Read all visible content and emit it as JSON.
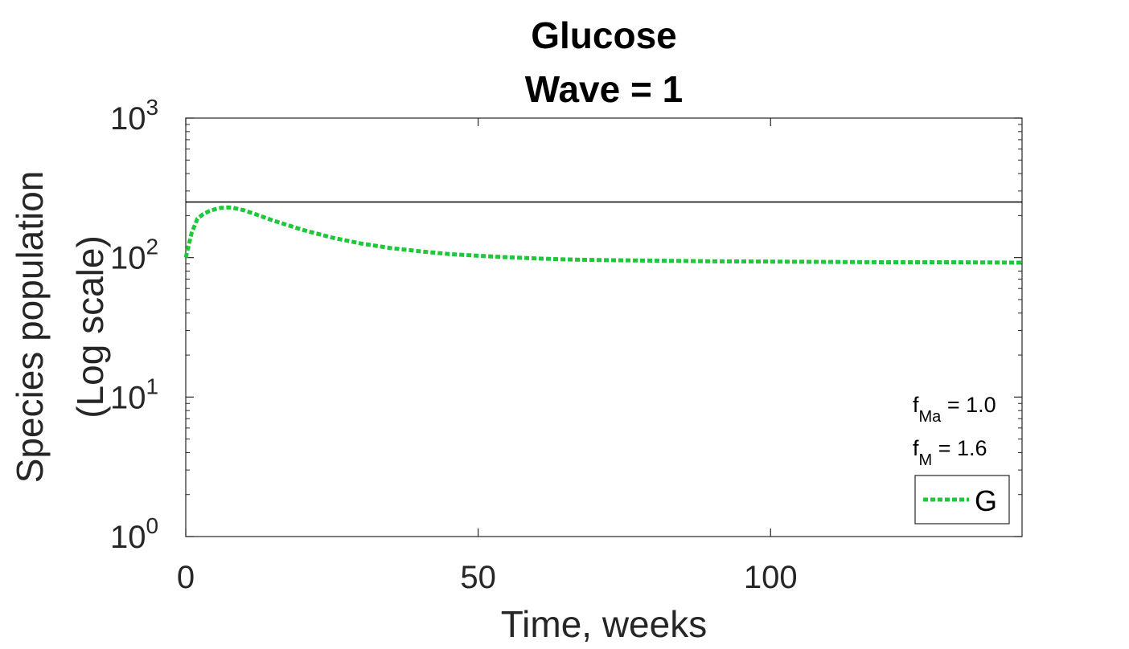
{
  "chart_data": {
    "type": "line",
    "title": [
      "Glucose",
      "Wave = 1"
    ],
    "xlabel": "Time, weeks",
    "ylabel": [
      "Species population",
      "(Log scale)"
    ],
    "xlim": [
      0,
      143
    ],
    "ylim": [
      1,
      1000
    ],
    "yscale": "log",
    "x_ticks": [
      0,
      50,
      100
    ],
    "x_tick_labels": [
      "0",
      "50",
      "100"
    ],
    "y_ticks": [
      1,
      10,
      100,
      1000
    ],
    "y_tick_labels": [
      {
        "base": "10",
        "exp": "0"
      },
      {
        "base": "10",
        "exp": "1"
      },
      {
        "base": "10",
        "exp": "2"
      },
      {
        "base": "10",
        "exp": "3"
      }
    ],
    "grid": false,
    "reference_line": {
      "y": 250,
      "color": "#000000"
    },
    "series": [
      {
        "name": "G",
        "color": "#1fc83a",
        "style": "dotted",
        "x": [
          0,
          1,
          2,
          3,
          4,
          5,
          6,
          7,
          8,
          10,
          12,
          15,
          20,
          25,
          30,
          35,
          40,
          45,
          50,
          55,
          60,
          65,
          70,
          75,
          80,
          90,
          100,
          110,
          120,
          130,
          143
        ],
        "y": [
          100,
          150,
          190,
          205,
          215,
          222,
          227,
          229,
          228,
          218,
          204,
          184,
          158,
          139,
          126,
          117,
          111,
          106,
          103,
          100.5,
          98.5,
          97,
          96,
          95.5,
          95,
          94,
          93.5,
          93,
          92.5,
          92.5,
          92
        ]
      }
    ],
    "legend": {
      "placement": "bottom-right",
      "entries": [
        "G"
      ]
    },
    "annotations": [
      {
        "base": "f",
        "sub": "Ma",
        "rest": " = 1.0"
      },
      {
        "base": "f",
        "sub": "M",
        "rest": " = 1.6"
      }
    ]
  }
}
